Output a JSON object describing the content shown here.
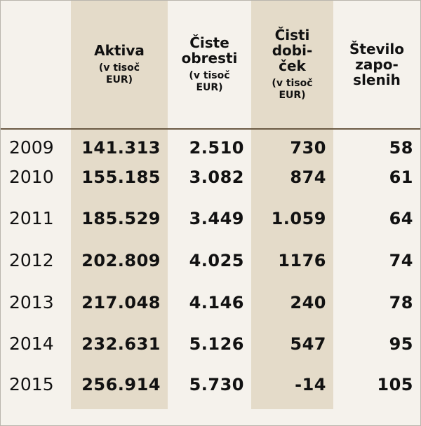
{
  "table": {
    "columns": [
      {
        "title_lines": [],
        "sub_lines": []
      },
      {
        "title_lines": [
          "Aktiva"
        ],
        "sub_lines": [
          "(v tisoč",
          "EUR)"
        ]
      },
      {
        "title_lines": [
          "Čiste",
          "obresti"
        ],
        "sub_lines": [
          "(v tisoč",
          "EUR)"
        ]
      },
      {
        "title_lines": [
          "Čisti",
          "dobi-",
          "ček"
        ],
        "sub_lines": [
          "(v tisoč",
          "EUR)"
        ]
      },
      {
        "title_lines": [
          "Število",
          "zapo-",
          "slenih"
        ],
        "sub_lines": []
      }
    ],
    "rows": [
      [
        "2009",
        "141.313",
        "2.510",
        "730",
        "58"
      ],
      [
        "2010",
        "155.185",
        "3.082",
        "874",
        "61"
      ],
      [
        "2011",
        "185.529",
        "3.449",
        "1.059",
        "64"
      ],
      [
        "2012",
        "202.809",
        "4.025",
        "1176",
        "74"
      ],
      [
        "2013",
        "217.048",
        "4.146",
        "240",
        "78"
      ],
      [
        "2014",
        "232.631",
        "5.126",
        "547",
        "95"
      ],
      [
        "2015",
        "256.914",
        "5.730",
        "-14",
        "105"
      ]
    ]
  }
}
